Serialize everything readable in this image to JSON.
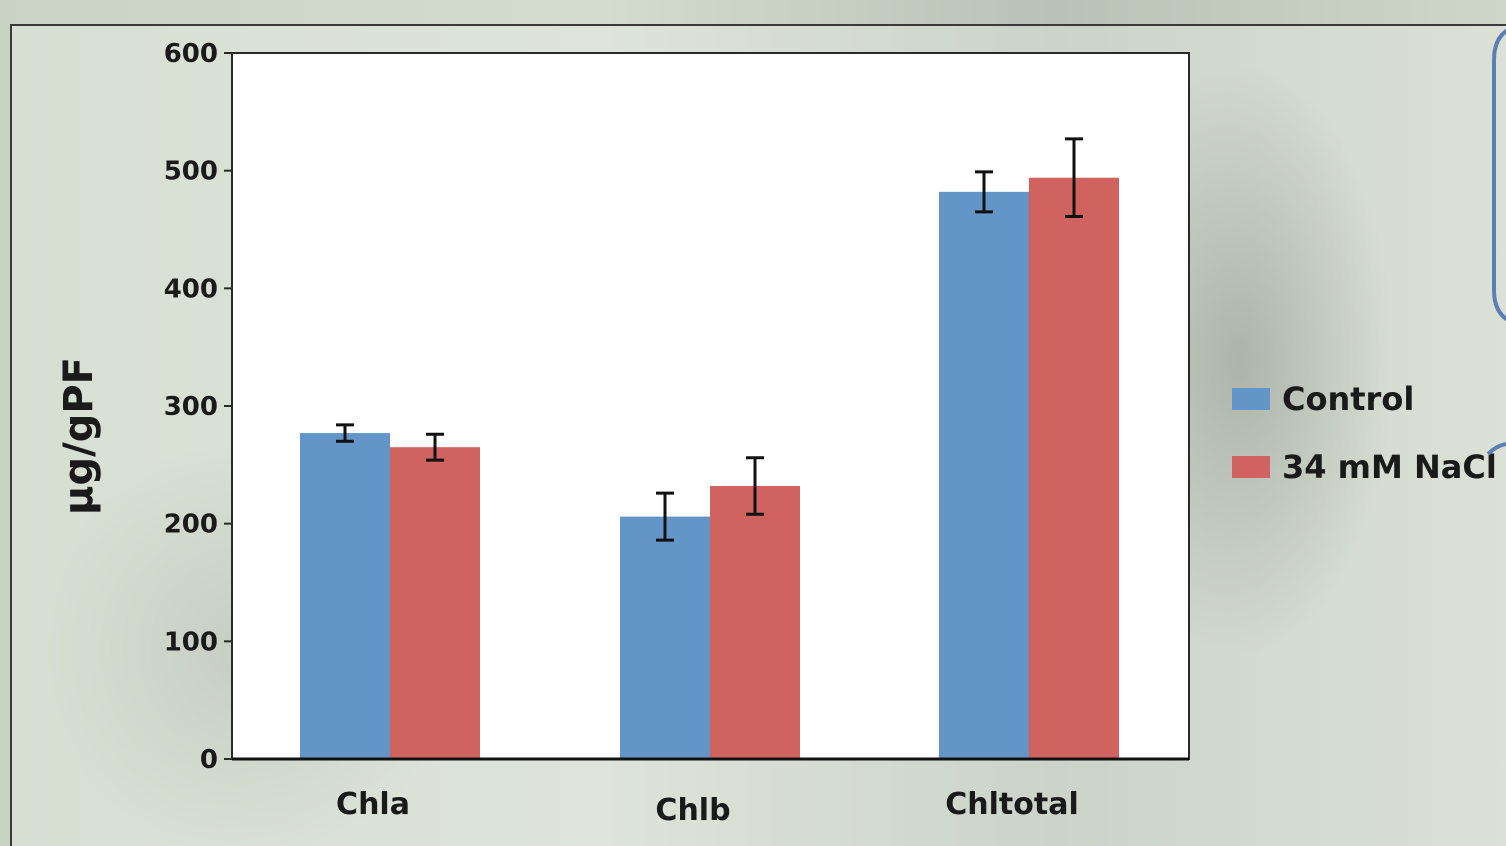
{
  "chart_data": {
    "type": "bar",
    "categories": [
      "Chla",
      "Chlb",
      "Chltotal"
    ],
    "series": [
      {
        "name": "Control",
        "values": [
          277,
          206,
          482
        ],
        "errors": [
          7,
          20,
          17
        ],
        "color": "#6395c8"
      },
      {
        "name": "34 mM NaCl",
        "values": [
          265,
          232,
          494
        ],
        "errors": [
          11,
          24,
          33
        ],
        "color": "#d0625f"
      }
    ],
    "ylabel": "µg/gPF",
    "xlabel": "",
    "ylim": [
      0,
      600
    ],
    "yticks": [
      "0",
      "100",
      "200",
      "300",
      "400",
      "500",
      "600"
    ],
    "grid": false,
    "legend_position": "right"
  }
}
